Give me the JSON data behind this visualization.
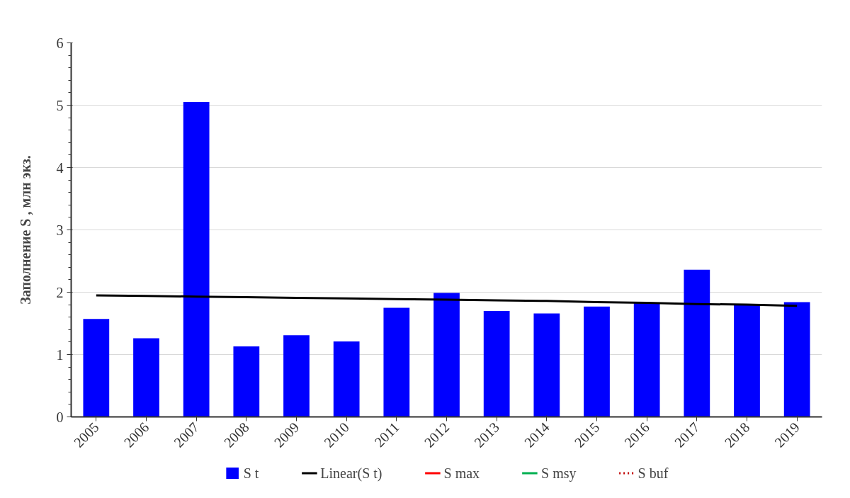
{
  "chart_data": {
    "type": "bar",
    "ylabel": "Заполнение S , млн экз.",
    "categories": [
      "2005",
      "2006",
      "2007",
      "2008",
      "2009",
      "2010",
      "2011",
      "2012",
      "2013",
      "2014",
      "2015",
      "2016",
      "2017",
      "2018",
      "2019"
    ],
    "series": [
      {
        "name": "S t",
        "color": "#0000ff",
        "values": [
          1.57,
          1.26,
          5.05,
          1.13,
          1.31,
          1.21,
          1.75,
          1.99,
          1.7,
          1.66,
          1.77,
          1.83,
          2.36,
          1.81,
          1.84
        ]
      },
      {
        "name": "Linear(S t)",
        "type": "line",
        "color": "#000000",
        "values": [
          1.95,
          1.94,
          1.93,
          1.92,
          1.91,
          1.9,
          1.89,
          1.88,
          1.87,
          1.86,
          1.84,
          1.83,
          1.81,
          1.8,
          1.78
        ]
      },
      {
        "name": "S max",
        "type": "line",
        "color": "#ff0000",
        "values": [
          null,
          null,
          null,
          null,
          null,
          null,
          null,
          null,
          null,
          null,
          null,
          null,
          null,
          null,
          null
        ]
      },
      {
        "name": "S msy",
        "type": "line",
        "color": "#00b050",
        "values": [
          null,
          null,
          null,
          null,
          null,
          null,
          null,
          null,
          null,
          null,
          null,
          null,
          null,
          null,
          null
        ]
      },
      {
        "name": "S buf",
        "type": "line",
        "color": "#c00000",
        "line_style": "dotted",
        "values": [
          null,
          null,
          null,
          null,
          null,
          null,
          null,
          null,
          null,
          null,
          null,
          null,
          null,
          null,
          null
        ]
      }
    ],
    "ylim": [
      0,
      6
    ],
    "yticks": [
      0,
      1,
      2,
      3,
      4,
      5,
      6
    ],
    "grid": "y",
    "legend": "bottom"
  }
}
